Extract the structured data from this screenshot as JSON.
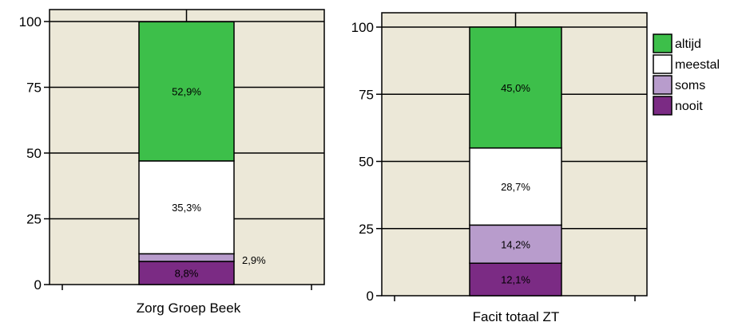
{
  "chart_data": {
    "type": "bar",
    "stacked": true,
    "ylim": [
      0,
      100
    ],
    "yticks": [
      0,
      25,
      50,
      75,
      100
    ],
    "grid": true,
    "legend_position": "right",
    "series_order_bottom_to_top": [
      "nooit",
      "soms",
      "meestal",
      "altijd"
    ],
    "series_colors": {
      "altijd": "#3dbf4a",
      "meestal": "#ffffff",
      "soms": "#b89ccc",
      "nooit": "#7b2b84"
    },
    "background_color": "#ece8d8",
    "legend": [
      {
        "name": "altijd",
        "color": "#3dbf4a"
      },
      {
        "name": "meestal",
        "color": "#ffffff"
      },
      {
        "name": "soms",
        "color": "#b89ccc"
      },
      {
        "name": "nooit",
        "color": "#7b2b84"
      }
    ],
    "panels": [
      {
        "category": "Zorg Groep Beek",
        "segments": [
          {
            "name": "nooit",
            "value": 8.8,
            "label": "8,8%",
            "label_outside": false
          },
          {
            "name": "soms",
            "value": 2.9,
            "label": "2,9%",
            "label_outside": true
          },
          {
            "name": "meestal",
            "value": 35.3,
            "label": "35,3%",
            "label_outside": false
          },
          {
            "name": "altijd",
            "value": 52.9,
            "label": "52,9%",
            "label_outside": false
          }
        ]
      },
      {
        "category": "Facit totaal ZT",
        "segments": [
          {
            "name": "nooit",
            "value": 12.1,
            "label": "12,1%",
            "label_outside": false
          },
          {
            "name": "soms",
            "value": 14.2,
            "label": "14,2%",
            "label_outside": false
          },
          {
            "name": "meestal",
            "value": 28.7,
            "label": "28,7%",
            "label_outside": false
          },
          {
            "name": "altijd",
            "value": 45.0,
            "label": "45,0%",
            "label_outside": false
          }
        ]
      }
    ]
  }
}
